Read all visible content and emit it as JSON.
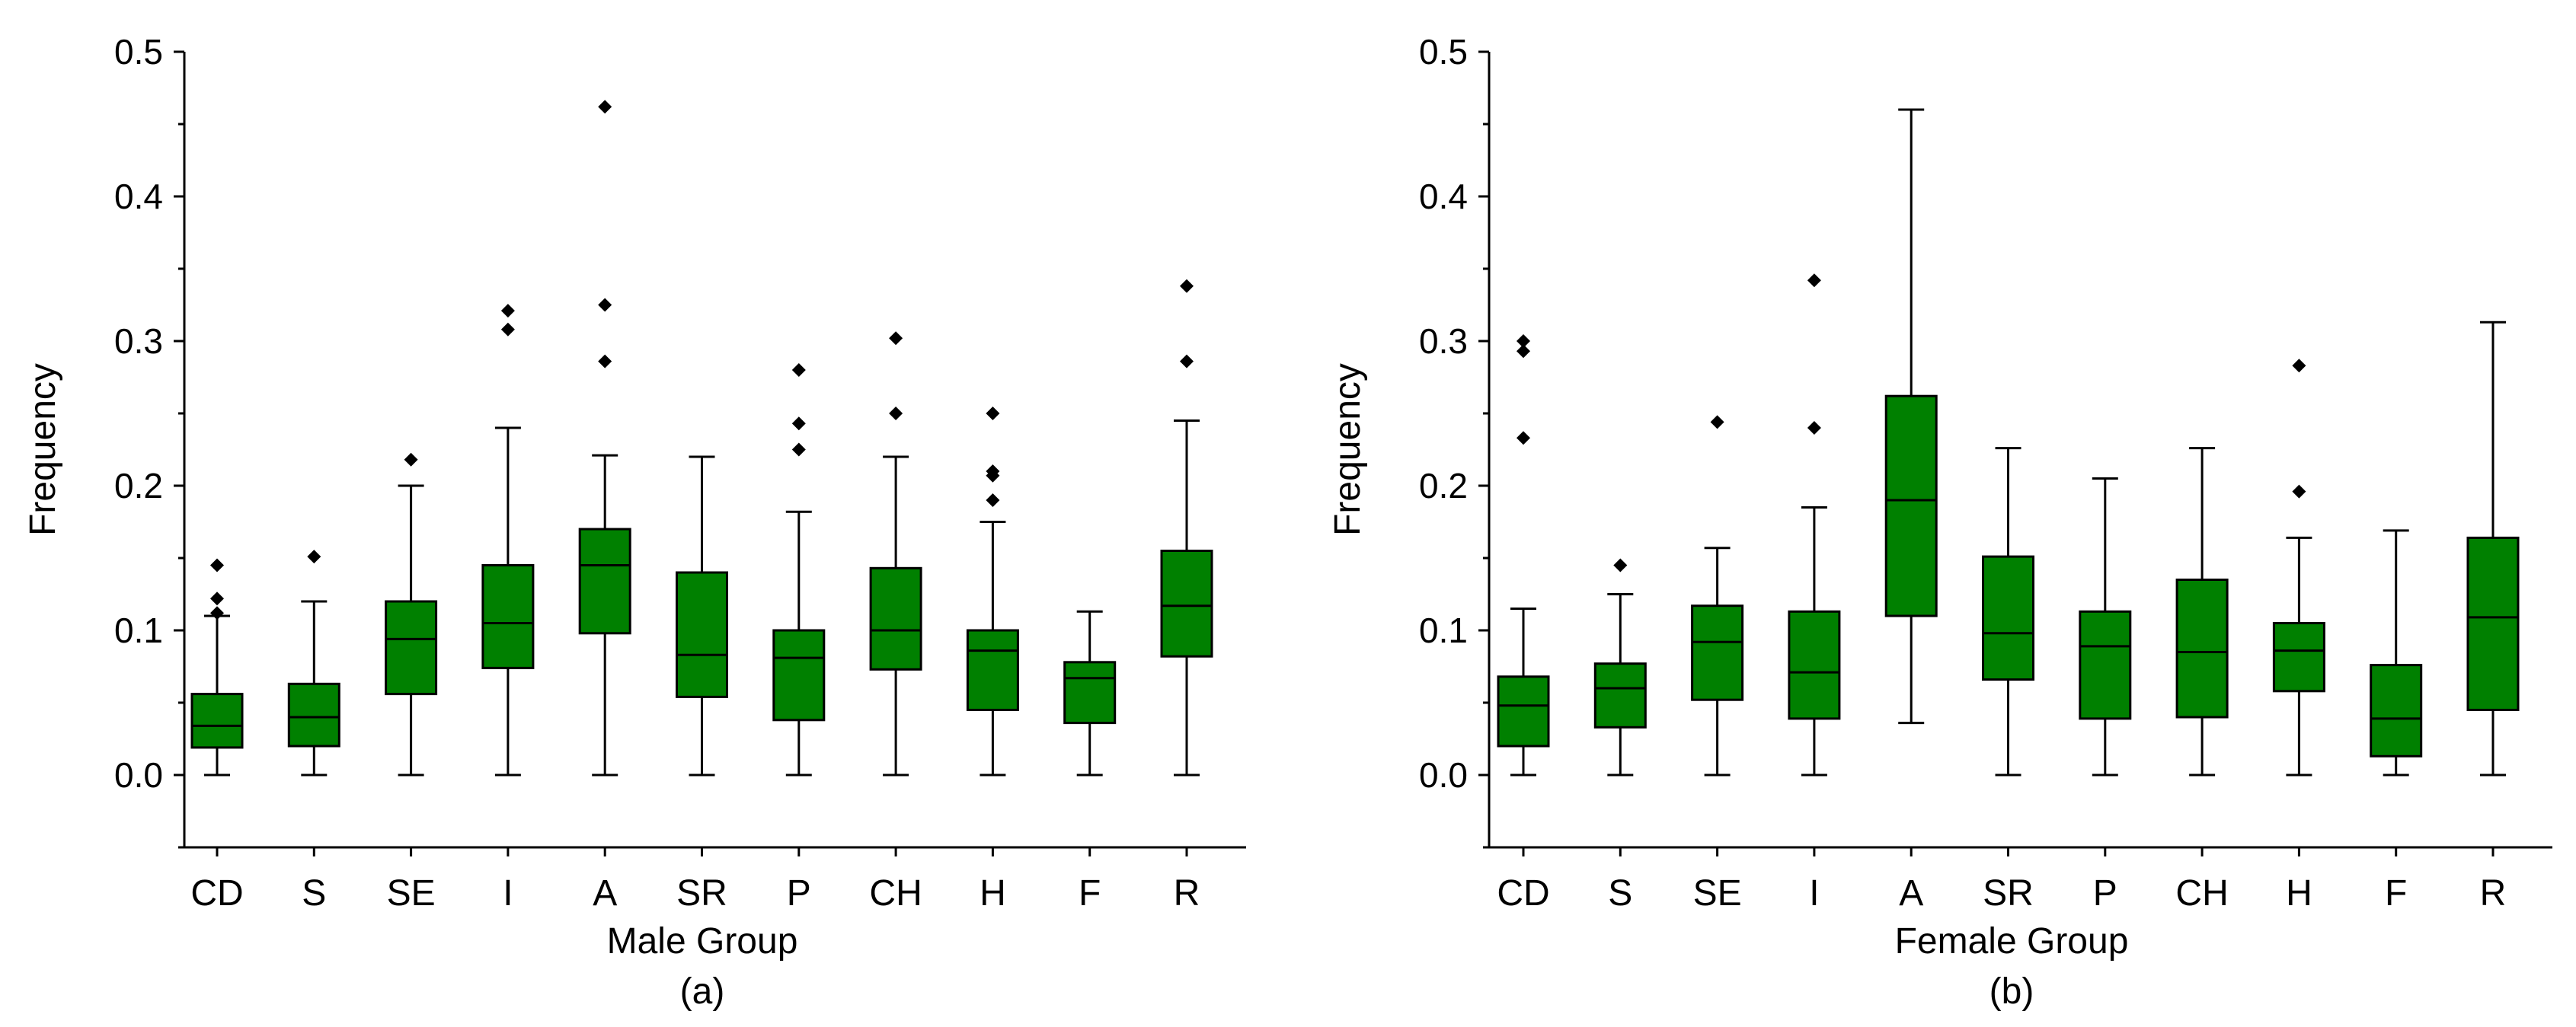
{
  "chart_data": [
    {
      "type": "box",
      "panel_label": "(a)",
      "xlabel": "Male Group",
      "ylabel": "Frequency",
      "ylim": [
        -0.05,
        0.5
      ],
      "yticks": [
        0.0,
        0.1,
        0.2,
        0.3,
        0.4,
        0.5
      ],
      "ytick_labels": [
        "0.0",
        "0.1",
        "0.2",
        "0.3",
        "0.4",
        "0.5"
      ],
      "box_color": "#008000",
      "categories": [
        "CD",
        "S",
        "SE",
        "I",
        "A",
        "SR",
        "P",
        "CH",
        "H",
        "F",
        "R"
      ],
      "boxes": [
        {
          "label": "CD",
          "whisker_low": 0.0,
          "q1": 0.019,
          "median": 0.034,
          "q3": 0.056,
          "whisker_high": 0.11,
          "outliers": [
            0.112,
            0.122,
            0.145
          ]
        },
        {
          "label": "S",
          "whisker_low": 0.0,
          "q1": 0.02,
          "median": 0.04,
          "q3": 0.063,
          "whisker_high": 0.12,
          "outliers": [
            0.151
          ]
        },
        {
          "label": "SE",
          "whisker_low": 0.0,
          "q1": 0.056,
          "median": 0.094,
          "q3": 0.12,
          "whisker_high": 0.2,
          "outliers": [
            0.218
          ]
        },
        {
          "label": "I",
          "whisker_low": 0.0,
          "q1": 0.074,
          "median": 0.105,
          "q3": 0.145,
          "whisker_high": 0.24,
          "outliers": [
            0.308,
            0.321
          ]
        },
        {
          "label": "A",
          "whisker_low": 0.0,
          "q1": 0.098,
          "median": 0.145,
          "q3": 0.17,
          "whisker_high": 0.221,
          "outliers": [
            0.286,
            0.325,
            0.462
          ]
        },
        {
          "label": "SR",
          "whisker_low": 0.0,
          "q1": 0.054,
          "median": 0.083,
          "q3": 0.14,
          "whisker_high": 0.22,
          "outliers": []
        },
        {
          "label": "P",
          "whisker_low": 0.0,
          "q1": 0.038,
          "median": 0.081,
          "q3": 0.1,
          "whisker_high": 0.182,
          "outliers": [
            0.225,
            0.243,
            0.28
          ]
        },
        {
          "label": "CH",
          "whisker_low": 0.0,
          "q1": 0.073,
          "median": 0.1,
          "q3": 0.143,
          "whisker_high": 0.22,
          "outliers": [
            0.25,
            0.302
          ]
        },
        {
          "label": "H",
          "whisker_low": 0.0,
          "q1": 0.045,
          "median": 0.086,
          "q3": 0.1,
          "whisker_high": 0.175,
          "outliers": [
            0.19,
            0.207,
            0.21,
            0.25
          ]
        },
        {
          "label": "F",
          "whisker_low": 0.0,
          "q1": 0.036,
          "median": 0.067,
          "q3": 0.078,
          "whisker_high": 0.113,
          "outliers": []
        },
        {
          "label": "R",
          "whisker_low": 0.0,
          "q1": 0.082,
          "median": 0.117,
          "q3": 0.155,
          "whisker_high": 0.245,
          "outliers": [
            0.286,
            0.338
          ]
        }
      ]
    },
    {
      "type": "box",
      "panel_label": "(b)",
      "xlabel": "Female Group",
      "ylabel": "Frequency",
      "ylim": [
        -0.05,
        0.5
      ],
      "yticks": [
        0.0,
        0.1,
        0.2,
        0.3,
        0.4,
        0.5
      ],
      "ytick_labels": [
        "0.0",
        "0.1",
        "0.2",
        "0.3",
        "0.4",
        "0.5"
      ],
      "box_color": "#008000",
      "categories": [
        "CD",
        "S",
        "SE",
        "I",
        "A",
        "SR",
        "P",
        "CH",
        "H",
        "F",
        "R"
      ],
      "boxes": [
        {
          "label": "CD",
          "whisker_low": 0.0,
          "q1": 0.02,
          "median": 0.048,
          "q3": 0.068,
          "whisker_high": 0.115,
          "outliers": [
            0.233,
            0.293,
            0.3
          ]
        },
        {
          "label": "S",
          "whisker_low": 0.0,
          "q1": 0.033,
          "median": 0.06,
          "q3": 0.077,
          "whisker_high": 0.125,
          "outliers": [
            0.145
          ]
        },
        {
          "label": "SE",
          "whisker_low": 0.0,
          "q1": 0.052,
          "median": 0.092,
          "q3": 0.117,
          "whisker_high": 0.157,
          "outliers": [
            0.244
          ]
        },
        {
          "label": "I",
          "whisker_low": 0.0,
          "q1": 0.039,
          "median": 0.071,
          "q3": 0.113,
          "whisker_high": 0.185,
          "outliers": [
            0.24,
            0.342
          ]
        },
        {
          "label": "A",
          "whisker_low": 0.036,
          "q1": 0.11,
          "median": 0.19,
          "q3": 0.262,
          "whisker_high": 0.46,
          "outliers": []
        },
        {
          "label": "SR",
          "whisker_low": 0.0,
          "q1": 0.066,
          "median": 0.098,
          "q3": 0.151,
          "whisker_high": 0.226,
          "outliers": []
        },
        {
          "label": "P",
          "whisker_low": 0.0,
          "q1": 0.039,
          "median": 0.089,
          "q3": 0.113,
          "whisker_high": 0.205,
          "outliers": []
        },
        {
          "label": "CH",
          "whisker_low": 0.0,
          "q1": 0.04,
          "median": 0.085,
          "q3": 0.135,
          "whisker_high": 0.226,
          "outliers": []
        },
        {
          "label": "H",
          "whisker_low": 0.0,
          "q1": 0.058,
          "median": 0.086,
          "q3": 0.105,
          "whisker_high": 0.164,
          "outliers": [
            0.196,
            0.283
          ]
        },
        {
          "label": "F",
          "whisker_low": 0.0,
          "q1": 0.013,
          "median": 0.039,
          "q3": 0.076,
          "whisker_high": 0.169,
          "outliers": []
        },
        {
          "label": "R",
          "whisker_low": 0.0,
          "q1": 0.045,
          "median": 0.109,
          "q3": 0.164,
          "whisker_high": 0.313,
          "outliers": []
        }
      ]
    }
  ]
}
